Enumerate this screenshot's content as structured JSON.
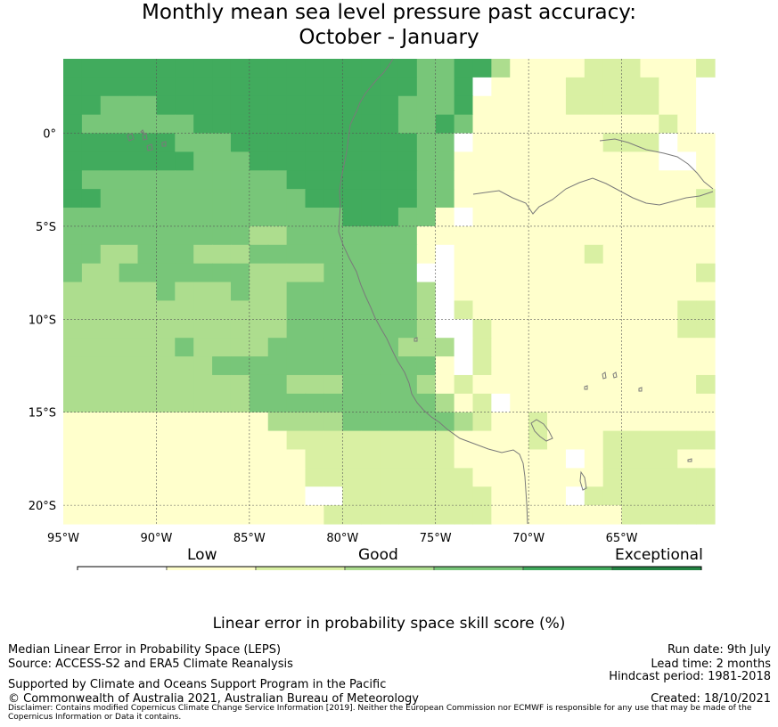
{
  "title": {
    "line1": "Monthly mean sea level pressure past accuracy:",
    "line2": "October - January"
  },
  "colors": {
    "bin_-100_0": "#ffffff",
    "bin_0_5": "#ffffcc",
    "bin_5_10": "#d9f0a3",
    "bin_10_15": "#addd8e",
    "bin_15_25": "#78c679",
    "bin_25_35": "#41ab5d",
    "bin_35_100": "#238443",
    "coastline": "#7a7a7a",
    "grid": "#555555"
  },
  "map": {
    "lon_range": [
      -95,
      -60
    ],
    "lat_range": [
      -21,
      4
    ],
    "x_ticks": [
      "95°W",
      "90°W",
      "85°W",
      "80°W",
      "75°W",
      "70°W",
      "65°W"
    ],
    "y_ticks": [
      "0°",
      "5°S",
      "10°S",
      "15°S",
      "20°S"
    ],
    "grid": true
  },
  "chart_data": {
    "type": "heatmap",
    "title": "Monthly mean sea level pressure past accuracy: October - January",
    "x_ticks": [
      "95°W",
      "90°W",
      "85°W",
      "80°W",
      "75°W",
      "70°W",
      "65°W"
    ],
    "y_ticks": [
      "0°",
      "5°S",
      "10°S",
      "15°S",
      "20°S"
    ],
    "bins": [
      -100,
      0,
      5,
      10,
      15,
      25,
      35,
      100
    ],
    "bin_colors": [
      "#ffffff",
      "#ffffcc",
      "#d9f0a3",
      "#addd8e",
      "#78c679",
      "#41ab5d",
      "#238443"
    ],
    "cell_size_deg": 1,
    "rows_note": "rows run from lat 4 (top) to -21 (bottom); cols from lon -95 to -60; digit = bin index",
    "grid_rows": [
      "55555555555555555554455311112221112",
      "55555555555555555554450111122222110",
      "55444555555555555544451111122222110",
      "54444445555555555544541111111111210",
      "55555544455555555554401111111222011",
      "55555554445555555554411111111111001",
      "54444444444455555554411111111111111",
      "55444444444445555554411111111111112",
      "44444444444444455544101111111111111",
      "44444444443344444441111111111111111",
      "44334443334444444441011111112111111",
      "43344444443333444440011111111111112",
      "33333433343344444443011111111111111",
      "33333333333344444443021111111111122",
      "33333333333344444443002111111111122",
      "33333343333444444433302111111111111",
      "33333333444444444444102111111111111",
      "33333333334433344443121111111111112",
      "33333333334444444444312011111111111",
      "11111111111333344444432112111111111",
      "11111111111122222222211112111222222",
      "11111111111112222222211111101222211",
      "11111111111112222222221111111222222",
      "11111111111110022222222111102222222",
      "11111111111111222222222111111122222"
    ],
    "colorbar": {
      "ticks": [
        "-100",
        "0",
        "5",
        "10",
        "15",
        "25",
        "35",
        "100"
      ],
      "categories": [
        "Low",
        "Good",
        "Exceptional"
      ],
      "label": "Linear error in probability space skill score (%)"
    }
  },
  "colorbar": {
    "ticks": [
      "-100",
      "0",
      "5",
      "10",
      "15",
      "25",
      "35",
      "100"
    ],
    "cat_low": "Low",
    "cat_good": "Good",
    "cat_exceptional": "Exceptional",
    "label": "Linear error in probability space skill score (%)"
  },
  "footer": {
    "left1": "Median Linear Error in Probability Space (LEPS)",
    "left2": "Source: ACCESS-S2 and ERA5 Climate Reanalysis",
    "left3": "Supported by Climate and Oceans Support Program in the Pacific",
    "left4": "© Commonwealth of Australia 2021, Australian Bureau of Meteorology",
    "right1": "Run date: 9th July",
    "right2": "Lead time: 2 months",
    "right3": "Hindcast period: 1981-2018",
    "right4": "Created: 18/10/2021",
    "disclaimer": "Disclaimer: Contains modified Copernicus Climate Change Service Information [2019]. Neither the European Commission nor ECMWF is responsible for any use that may be made of the Copernicus Information or Data it contains."
  }
}
